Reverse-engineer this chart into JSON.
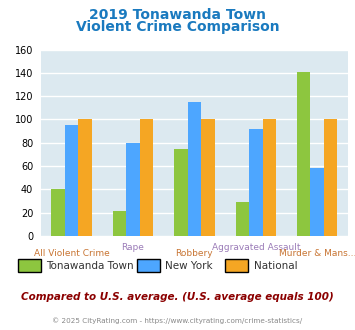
{
  "title_line1": "2019 Tonawanda Town",
  "title_line2": "Violent Crime Comparison",
  "title_color": "#1a7abf",
  "categories": [
    "All Violent Crime",
    "Rape",
    "Robbery",
    "Aggravated Assault",
    "Murder & Mans..."
  ],
  "series": {
    "Tonawanda Town": [
      40,
      21,
      75,
      29,
      141
    ],
    "New York": [
      95,
      80,
      115,
      92,
      58
    ],
    "National": [
      100,
      100,
      100,
      100,
      100
    ]
  },
  "colors": {
    "Tonawanda Town": "#8dc63f",
    "New York": "#4da6ff",
    "National": "#f5a623"
  },
  "ylim": [
    0,
    160
  ],
  "yticks": [
    0,
    20,
    40,
    60,
    80,
    100,
    120,
    140,
    160
  ],
  "bg_color": "#ffffff",
  "plot_bg_color": "#dce9f0",
  "grid_color": "#ffffff",
  "xlabel_top": [
    "",
    "Rape",
    "",
    "Aggravated Assault",
    ""
  ],
  "xlabel_bottom": [
    "All Violent Crime",
    "",
    "Robbery",
    "",
    "Murder & Mans..."
  ],
  "xlabel_top_color": "#9b7cb8",
  "xlabel_bottom_color": "#c87533",
  "footer_text": "Compared to U.S. average. (U.S. average equals 100)",
  "footer_color": "#8b0000",
  "copyright_text": "© 2025 CityRating.com - https://www.cityrating.com/crime-statistics/",
  "copyright_color": "#888888",
  "legend_text_color": "#333333"
}
